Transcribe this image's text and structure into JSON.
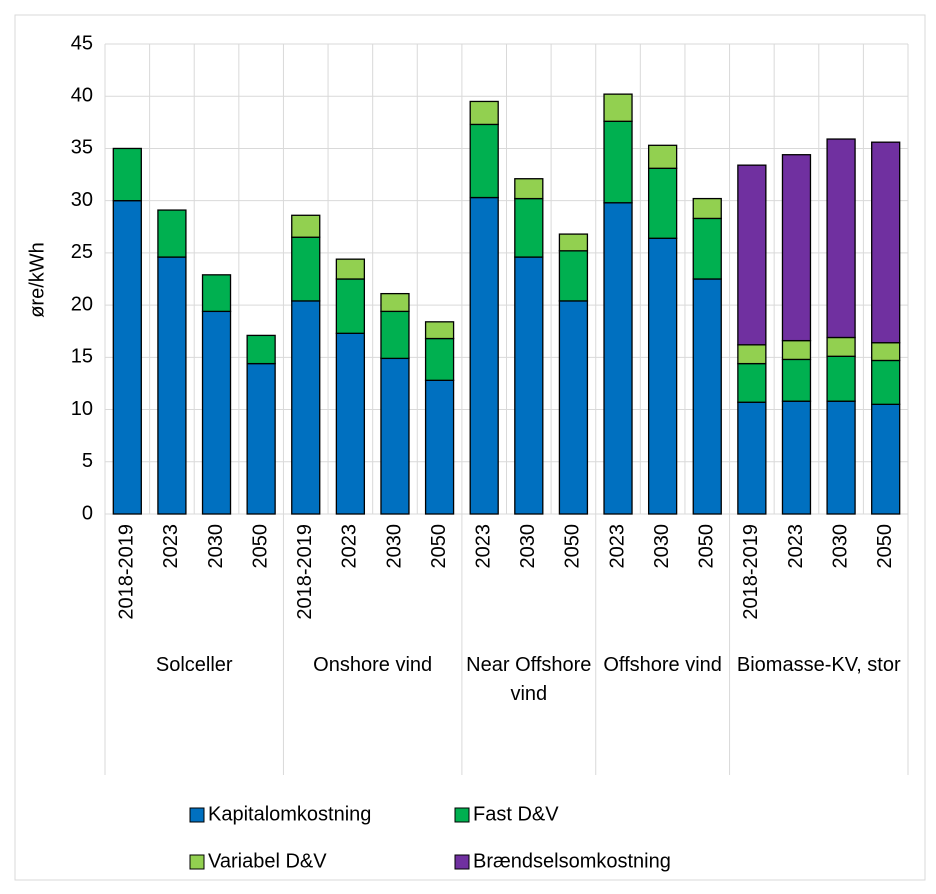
{
  "chart_data": {
    "type": "stacked_bar",
    "ylabel": "øre/kWh",
    "groups": [
      {
        "name": "Solceller",
        "categories": [
          "2018-2019",
          "2023",
          "2030",
          "2050"
        ]
      },
      {
        "name": "Onshore vind",
        "categories": [
          "2018-2019",
          "2023",
          "2030",
          "2050"
        ]
      },
      {
        "name": "Near Offshore vind",
        "categories": [
          "2023",
          "2030",
          "2050"
        ]
      },
      {
        "name": "Offshore vind",
        "categories": [
          "2023",
          "2030",
          "2050"
        ]
      },
      {
        "name": "Biomasse-KV, stor",
        "categories": [
          "2018-2019",
          "2023",
          "2030",
          "2050"
        ]
      }
    ],
    "series": [
      {
        "name": "Kapitalomkostning",
        "color": "#0070c0",
        "values": [
          30.0,
          24.6,
          19.4,
          14.4,
          20.4,
          17.3,
          14.9,
          12.8,
          30.3,
          24.6,
          20.4,
          29.8,
          26.4,
          22.5,
          10.7,
          10.8,
          10.8,
          10.5
        ]
      },
      {
        "name": "Fast D&V",
        "color": "#00b050",
        "values": [
          5.0,
          4.5,
          3.5,
          2.7,
          6.1,
          5.2,
          4.5,
          4.0,
          7.0,
          5.6,
          4.8,
          7.8,
          6.7,
          5.8,
          3.7,
          4.0,
          4.3,
          4.2
        ]
      },
      {
        "name": "Variabel D&V",
        "color": "#92d050",
        "values": [
          0,
          0,
          0,
          0,
          2.1,
          1.9,
          1.7,
          1.6,
          2.2,
          1.9,
          1.6,
          2.6,
          2.2,
          1.9,
          1.8,
          1.8,
          1.8,
          1.7
        ]
      },
      {
        "name": "Brændselsomkostning",
        "color": "#7030a0",
        "values": [
          0,
          0,
          0,
          0,
          0,
          0,
          0,
          0,
          0,
          0,
          0,
          0,
          0,
          0,
          17.2,
          17.8,
          19.0,
          19.2
        ]
      }
    ],
    "ylim": [
      0,
      45
    ],
    "yticks": [
      0,
      5,
      10,
      15,
      20,
      25,
      30,
      35,
      40,
      45
    ],
    "grid": true
  }
}
